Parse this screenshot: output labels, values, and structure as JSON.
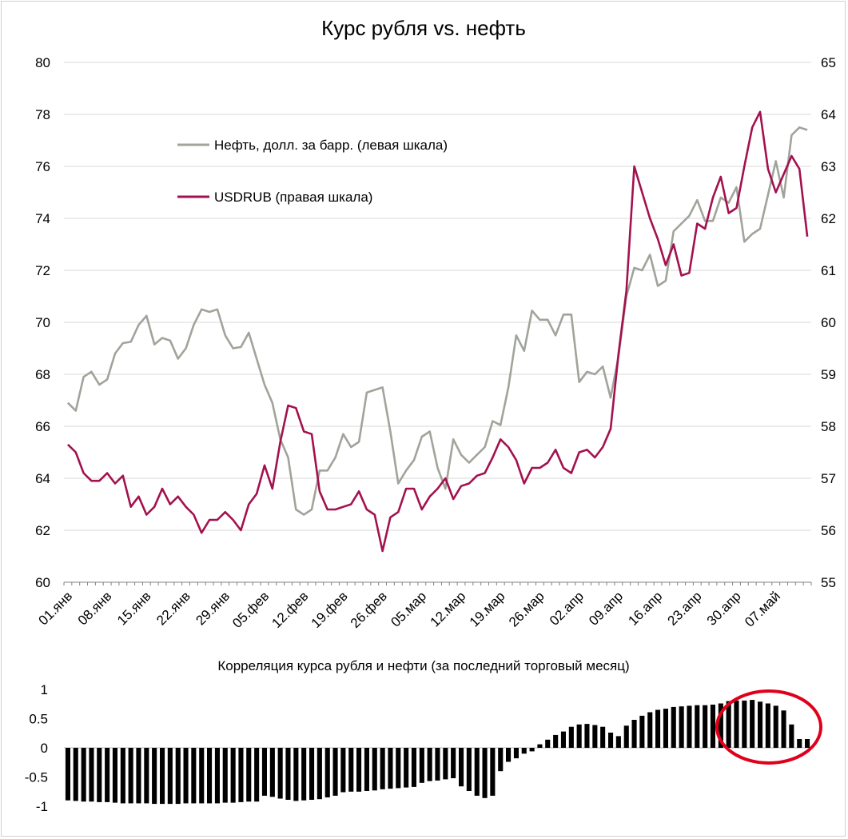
{
  "chart_data": [
    {
      "type": "line",
      "title": "Курс рубля vs. нефть",
      "xlabel": "",
      "ylabel": "",
      "x_tick_labels": [
        "01.янв",
        "08.янв",
        "15.янв",
        "22.янв",
        "29.янв",
        "05.фев",
        "12.фев",
        "19.фев",
        "26.фев",
        "05.мар",
        "12.мар",
        "19.мар",
        "26.мар",
        "02.апр",
        "09.апр",
        "16.апр",
        "23.апр",
        "30.апр",
        "07.май"
      ],
      "y_left": {
        "ylim": [
          60,
          80
        ],
        "ticks": [
          "60",
          "62",
          "64",
          "66",
          "68",
          "70",
          "72",
          "74",
          "76",
          "78",
          "80"
        ]
      },
      "y_right": {
        "ylim": [
          55,
          65
        ],
        "ticks": [
          "55",
          "56",
          "57",
          "58",
          "59",
          "60",
          "61",
          "62",
          "63",
          "64",
          "65"
        ]
      },
      "grid": true,
      "legend": "inside top-left",
      "series": [
        {
          "name": "Нефть, долл. за барр. (левая шкала)",
          "axis": "left",
          "color": "#a0a49a",
          "values": [
            [
              "01.янв",
              66.9
            ],
            [
              "02.янв",
              66.6
            ],
            [
              "03.янв",
              67.9
            ],
            [
              "04.янв",
              68.1
            ],
            [
              "05.янв",
              67.6
            ],
            [
              "08.янв",
              67.8
            ],
            [
              "09.янв",
              68.8
            ],
            [
              "10.янв",
              69.2
            ],
            [
              "11.янв",
              69.25
            ],
            [
              "12.янв",
              69.9
            ],
            [
              "15.янв",
              70.25
            ],
            [
              "16.янв",
              69.15
            ],
            [
              "17.янв",
              69.4
            ],
            [
              "18.янв",
              69.3
            ],
            [
              "19.янв",
              68.6
            ],
            [
              "22.янв",
              69.0
            ],
            [
              "23.янв",
              69.9
            ],
            [
              "24.янв",
              70.5
            ],
            [
              "25.янв",
              70.4
            ],
            [
              "26.янв",
              70.5
            ],
            [
              "29.янв",
              69.5
            ],
            [
              "30.янв",
              69.0
            ],
            [
              "31.янв",
              69.05
            ],
            [
              "01.фев",
              69.6
            ],
            [
              "02.фев",
              68.6
            ],
            [
              "05.фев",
              67.6
            ],
            [
              "06.фев",
              66.9
            ],
            [
              "07.фев",
              65.5
            ],
            [
              "08.фев",
              64.8
            ],
            [
              "09.фев",
              62.8
            ],
            [
              "12.фев",
              62.6
            ],
            [
              "13.фев",
              62.8
            ],
            [
              "14.фев",
              64.3
            ],
            [
              "15.фев",
              64.3
            ],
            [
              "16.фев",
              64.8
            ],
            [
              "19.фев",
              65.7
            ],
            [
              "20.фев",
              65.2
            ],
            [
              "21.фев",
              65.4
            ],
            [
              "22.фев",
              67.3
            ],
            [
              "23.фев",
              67.4
            ],
            [
              "26.фев",
              67.5
            ],
            [
              "27.фев",
              65.8
            ],
            [
              "28.фев",
              63.8
            ],
            [
              "01.мар",
              64.3
            ],
            [
              "02.мар",
              64.7
            ],
            [
              "05.мар",
              65.6
            ],
            [
              "06.мар",
              65.8
            ],
            [
              "07.мар",
              64.4
            ],
            [
              "08.мар",
              63.6
            ],
            [
              "09.мар",
              65.5
            ],
            [
              "12.мар",
              64.9
            ],
            [
              "13.мар",
              64.6
            ],
            [
              "14.мар",
              64.9
            ],
            [
              "15.мар",
              65.2
            ],
            [
              "16.мар",
              66.2
            ],
            [
              "19.мар",
              66.05
            ],
            [
              "20.мар",
              67.5
            ],
            [
              "21.мар",
              69.5
            ],
            [
              "22.мар",
              68.9
            ],
            [
              "23.мар",
              70.45
            ],
            [
              "26.мар",
              70.1
            ],
            [
              "27.мар",
              70.1
            ],
            [
              "28.мар",
              69.5
            ],
            [
              "29.мар",
              70.3
            ],
            [
              "30.мар",
              70.3
            ],
            [
              "02.апр",
              67.7
            ],
            [
              "03.апр",
              68.1
            ],
            [
              "04.апр",
              68.0
            ],
            [
              "05.апр",
              68.3
            ],
            [
              "06.апр",
              67.1
            ],
            [
              "09.апр",
              68.7
            ],
            [
              "10.апр",
              71.0
            ],
            [
              "11.апр",
              72.1
            ],
            [
              "12.апр",
              72.0
            ],
            [
              "13.апр",
              72.6
            ],
            [
              "16.апр",
              71.4
            ],
            [
              "17.апр",
              71.6
            ],
            [
              "18.апр",
              73.5
            ],
            [
              "19.апр",
              73.8
            ],
            [
              "20.апр",
              74.1
            ],
            [
              "23.апр",
              74.7
            ],
            [
              "24.апр",
              73.9
            ],
            [
              "25.апр",
              73.9
            ],
            [
              "26.апр",
              74.8
            ],
            [
              "27.апр",
              74.6
            ],
            [
              "30.апр",
              75.2
            ],
            [
              "01.май",
              73.1
            ],
            [
              "02.май",
              73.4
            ],
            [
              "03.май",
              73.6
            ],
            [
              "04.май",
              74.9
            ],
            [
              "07.май",
              76.2
            ],
            [
              "08.май",
              74.8
            ],
            [
              "09.май",
              77.2
            ],
            [
              "10.май",
              77.5
            ],
            [
              "11.май",
              77.4
            ]
          ]
        },
        {
          "name": "USDRUB (правая шкала)",
          "axis": "right",
          "color": "#a3114e",
          "values": [
            [
              "01.янв",
              57.65
            ],
            [
              "02.янв",
              57.5
            ],
            [
              "03.янв",
              57.1
            ],
            [
              "04.янв",
              56.95
            ],
            [
              "05.янв",
              56.95
            ],
            [
              "08.янв",
              57.1
            ],
            [
              "09.янв",
              56.9
            ],
            [
              "10.янв",
              57.05
            ],
            [
              "11.янв",
              56.45
            ],
            [
              "12.янв",
              56.65
            ],
            [
              "15.янв",
              56.3
            ],
            [
              "16.янв",
              56.45
            ],
            [
              "17.янв",
              56.8
            ],
            [
              "18.янв",
              56.5
            ],
            [
              "19.янв",
              56.65
            ],
            [
              "22.янв",
              56.45
            ],
            [
              "23.янв",
              56.3
            ],
            [
              "24.янв",
              55.95
            ],
            [
              "25.янв",
              56.2
            ],
            [
              "26.янв",
              56.2
            ],
            [
              "29.янв",
              56.35
            ],
            [
              "30.янв",
              56.2
            ],
            [
              "31.янв",
              56.0
            ],
            [
              "01.фев",
              56.5
            ],
            [
              "02.фев",
              56.7
            ],
            [
              "05.фев",
              57.25
            ],
            [
              "06.фев",
              56.8
            ],
            [
              "07.фев",
              57.7
            ],
            [
              "08.фев",
              58.4
            ],
            [
              "09.фев",
              58.35
            ],
            [
              "12.фев",
              57.9
            ],
            [
              "13.фев",
              57.85
            ],
            [
              "14.фев",
              56.75
            ],
            [
              "15.фев",
              56.4
            ],
            [
              "16.фев",
              56.4
            ],
            [
              "19.фев",
              56.45
            ],
            [
              "20.фев",
              56.5
            ],
            [
              "21.фев",
              56.75
            ],
            [
              "22.фев",
              56.4
            ],
            [
              "23.фев",
              56.3
            ],
            [
              "26.фев",
              55.6
            ],
            [
              "27.фев",
              56.25
            ],
            [
              "28.фев",
              56.35
            ],
            [
              "01.мар",
              56.8
            ],
            [
              "02.мар",
              56.8
            ],
            [
              "05.мар",
              56.4
            ],
            [
              "06.мар",
              56.65
            ],
            [
              "07.мар",
              56.8
            ],
            [
              "08.мар",
              57.0
            ],
            [
              "09.мар",
              56.6
            ],
            [
              "12.мар",
              56.85
            ],
            [
              "13.мар",
              56.9
            ],
            [
              "14.мар",
              57.05
            ],
            [
              "15.мар",
              57.1
            ],
            [
              "16.мар",
              57.4
            ],
            [
              "19.мар",
              57.75
            ],
            [
              "20.мар",
              57.6
            ],
            [
              "21.мар",
              57.35
            ],
            [
              "22.мар",
              56.9
            ],
            [
              "23.мар",
              57.2
            ],
            [
              "26.мар",
              57.2
            ],
            [
              "27.мар",
              57.3
            ],
            [
              "28.мар",
              57.55
            ],
            [
              "29.мар",
              57.2
            ],
            [
              "30.мар",
              57.1
            ],
            [
              "02.апр",
              57.5
            ],
            [
              "03.апр",
              57.55
            ],
            [
              "04.апр",
              57.4
            ],
            [
              "05.апр",
              57.6
            ],
            [
              "06.апр",
              57.95
            ],
            [
              "09.апр",
              59.4
            ],
            [
              "10.апр",
              60.6
            ],
            [
              "11.апр",
              63.0
            ],
            [
              "12.апр",
              62.5
            ],
            [
              "13.апр",
              62.0
            ],
            [
              "16.апр",
              61.6
            ],
            [
              "17.апр",
              61.1
            ],
            [
              "18.апр",
              61.5
            ],
            [
              "19.апр",
              60.9
            ],
            [
              "20.апр",
              60.95
            ],
            [
              "23.апр",
              61.9
            ],
            [
              "24.апр",
              61.8
            ],
            [
              "25.апр",
              62.4
            ],
            [
              "26.апр",
              62.8
            ],
            [
              "27.апр",
              62.1
            ],
            [
              "30.апр",
              62.2
            ],
            [
              "01.май",
              63.0
            ],
            [
              "02.май",
              63.75
            ],
            [
              "03.май",
              64.05
            ],
            [
              "04.май",
              62.95
            ],
            [
              "07.май",
              62.5
            ],
            [
              "08.май",
              62.85
            ],
            [
              "09.май",
              63.2
            ],
            [
              "10.май",
              62.95
            ],
            [
              "11.май",
              61.65
            ]
          ]
        }
      ]
    },
    {
      "type": "bar",
      "title": "Корреляция курса рубля и нефти (за последний торговый месяц)",
      "xlabel": "",
      "ylabel": "",
      "ylim": [
        -1,
        1
      ],
      "y_tick_labels": [
        "-1",
        "-0.5",
        "0",
        "0.5",
        "1"
      ],
      "color": "#000000",
      "annotation": "red ellipse highlighting the latest bars",
      "values": [
        -0.9,
        -0.91,
        -0.92,
        -0.92,
        -0.93,
        -0.93,
        -0.94,
        -0.95,
        -0.95,
        -0.95,
        -0.95,
        -0.96,
        -0.96,
        -0.96,
        -0.96,
        -0.95,
        -0.95,
        -0.95,
        -0.95,
        -0.95,
        -0.94,
        -0.94,
        -0.93,
        -0.92,
        -0.92,
        -0.82,
        -0.84,
        -0.87,
        -0.89,
        -0.91,
        -0.9,
        -0.89,
        -0.88,
        -0.85,
        -0.82,
        -0.76,
        -0.75,
        -0.75,
        -0.74,
        -0.73,
        -0.71,
        -0.7,
        -0.69,
        -0.68,
        -0.67,
        -0.6,
        -0.57,
        -0.56,
        -0.54,
        -0.52,
        -0.66,
        -0.74,
        -0.82,
        -0.86,
        -0.82,
        -0.4,
        -0.24,
        -0.18,
        -0.1,
        -0.06,
        0.06,
        0.14,
        0.22,
        0.28,
        0.36,
        0.4,
        0.41,
        0.39,
        0.36,
        0.26,
        0.2,
        0.38,
        0.48,
        0.55,
        0.61,
        0.65,
        0.67,
        0.7,
        0.71,
        0.72,
        0.73,
        0.73,
        0.74,
        0.76,
        0.8,
        0.81,
        0.81,
        0.82,
        0.79,
        0.76,
        0.72,
        0.64,
        0.4,
        0.15,
        0.15
      ]
    }
  ]
}
